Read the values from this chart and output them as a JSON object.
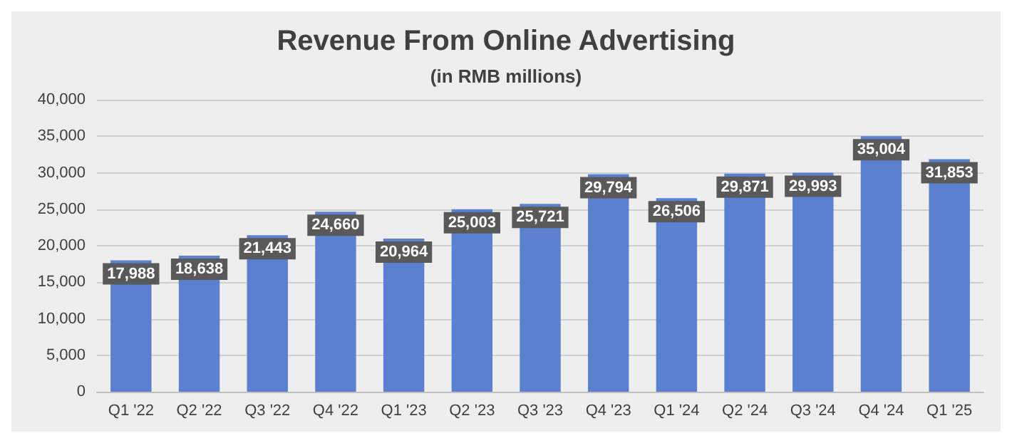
{
  "chart_data": {
    "type": "bar",
    "title": "Revenue From Online Advertising",
    "subtitle": "(in RMB millions)",
    "categories": [
      "Q1 '22",
      "Q2 '22",
      "Q3 '22",
      "Q4 '22",
      "Q1 '23",
      "Q2 '23",
      "Q3 '23",
      "Q4 '23",
      "Q1 '24",
      "Q2 '24",
      "Q3 '24",
      "Q4 '24",
      "Q1 '25"
    ],
    "values": [
      17988,
      18638,
      21443,
      24660,
      20964,
      25003,
      25721,
      29794,
      26506,
      29871,
      29993,
      35004,
      31853
    ],
    "color": "#5b80cf",
    "ylim": [
      0,
      40000
    ],
    "yticks": [
      {
        "value": 0,
        "label": "0"
      },
      {
        "value": 5000,
        "label": "5,000"
      },
      {
        "value": 10000,
        "label": "10,000"
      },
      {
        "value": 15000,
        "label": "15,000"
      },
      {
        "value": 20000,
        "label": "20,000"
      },
      {
        "value": 25000,
        "label": "25,000"
      },
      {
        "value": 30000,
        "label": "30,000"
      },
      {
        "value": 35000,
        "label": "35,000"
      },
      {
        "value": 40000,
        "label": "40,000"
      }
    ],
    "value_labels": [
      "17,988",
      "18,638",
      "21,443",
      "24,660",
      "20,964",
      "25,003",
      "25,721",
      "29,794",
      "26,506",
      "29,871",
      "29,993",
      "35,004",
      "31,853"
    ],
    "grid": "y"
  }
}
